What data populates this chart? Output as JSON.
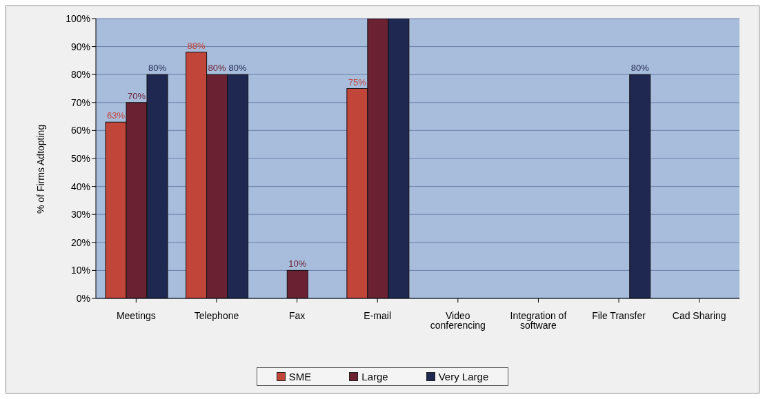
{
  "chart_data": {
    "type": "bar",
    "ylabel": "% of Firms Adtopting",
    "categories": [
      "Meetings",
      "Telephone",
      "Fax",
      "E-mail",
      "Video conferencing",
      "Integration of software",
      "File Transfer",
      "Cad Sharing"
    ],
    "series": [
      {
        "name": "SME",
        "color": "#c2453a",
        "values": [
          63,
          88,
          null,
          75,
          null,
          null,
          null,
          null
        ],
        "value_labels": [
          "63%",
          "88%",
          null,
          "75%",
          null,
          null,
          null,
          null
        ]
      },
      {
        "name": "Large",
        "color": "#6a2232",
        "values": [
          70,
          80,
          10,
          100,
          null,
          null,
          null,
          null
        ],
        "value_labels": [
          "70%",
          "80%",
          "10%",
          null,
          null,
          null,
          null,
          null
        ]
      },
      {
        "name": "Very Large",
        "color": "#1e2850",
        "values": [
          80,
          80,
          null,
          100,
          null,
          null,
          80,
          null
        ],
        "value_labels": [
          "80%",
          "80%",
          null,
          null,
          null,
          null,
          "80%",
          null
        ]
      }
    ],
    "ylim": [
      0,
      100
    ],
    "yticks": [
      {
        "value": 0,
        "label": "0%"
      },
      {
        "value": 10,
        "label": "10%"
      },
      {
        "value": 20,
        "label": "20%"
      },
      {
        "value": 30,
        "label": "30%"
      },
      {
        "value": 40,
        "label": "40%"
      },
      {
        "value": 50,
        "label": "50%"
      },
      {
        "value": 60,
        "label": "60%"
      },
      {
        "value": 70,
        "label": "70%"
      },
      {
        "value": 80,
        "label": "80%"
      },
      {
        "value": 90,
        "label": "90%"
      },
      {
        "value": 100,
        "label": "100%"
      }
    ],
    "grid": "y",
    "legend": "bottom"
  }
}
